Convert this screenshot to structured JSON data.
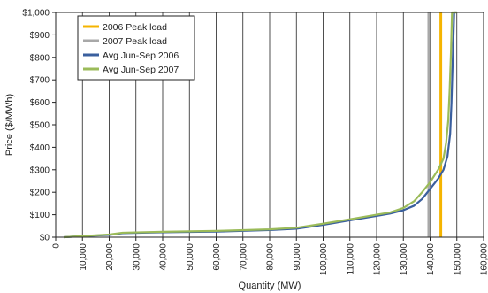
{
  "chart_data": {
    "type": "line",
    "title": "",
    "xlabel": "Quantity (MW)",
    "ylabel": "Price ($/MWh)",
    "xlim": [
      0,
      160000
    ],
    "ylim": [
      0,
      1000
    ],
    "x_ticks": [
      "0",
      "10,000",
      "20,000",
      "30,000",
      "40,000",
      "50,000",
      "60,000",
      "70,000",
      "80,000",
      "90,000",
      "100,000",
      "110,000",
      "120,000",
      "130,000",
      "140,000",
      "150,000",
      "160,000"
    ],
    "x_tick_values": [
      0,
      10000,
      20000,
      30000,
      40000,
      50000,
      60000,
      70000,
      80000,
      90000,
      100000,
      110000,
      120000,
      130000,
      140000,
      150000,
      160000
    ],
    "y_ticks": [
      "$0",
      "$100",
      "$200",
      "$300",
      "$400",
      "$500",
      "$600",
      "$700",
      "$800",
      "$900",
      "$1,000"
    ],
    "y_tick_values": [
      0,
      100,
      200,
      300,
      400,
      500,
      600,
      700,
      800,
      900,
      1000
    ],
    "grid": "vertical",
    "legend_position": "top-left",
    "series": [
      {
        "name": "2006 Peak load",
        "color": "#f5b400",
        "kind": "vline",
        "x": 144000
      },
      {
        "name": "2007 Peak load",
        "color": "#a8a8a8",
        "kind": "vline",
        "x": 139500
      },
      {
        "name": "Avg Jun-Sep 2006",
        "color": "#3a5f9e",
        "kind": "curve",
        "points": [
          [
            3000,
            0
          ],
          [
            10000,
            5
          ],
          [
            20000,
            10
          ],
          [
            25000,
            18
          ],
          [
            40000,
            22
          ],
          [
            60000,
            25
          ],
          [
            80000,
            32
          ],
          [
            90000,
            38
          ],
          [
            100000,
            55
          ],
          [
            110000,
            75
          ],
          [
            120000,
            95
          ],
          [
            125000,
            105
          ],
          [
            130000,
            120
          ],
          [
            134000,
            140
          ],
          [
            137000,
            170
          ],
          [
            140000,
            215
          ],
          [
            143000,
            260
          ],
          [
            145000,
            300
          ],
          [
            146500,
            360
          ],
          [
            147500,
            460
          ],
          [
            148000,
            600
          ],
          [
            148500,
            800
          ],
          [
            149000,
            1000
          ],
          [
            150000,
            1000
          ]
        ]
      },
      {
        "name": "Avg Jun-Sep 2007",
        "color": "#9bbb59",
        "kind": "curve",
        "points": [
          [
            3000,
            0
          ],
          [
            10000,
            5
          ],
          [
            20000,
            12
          ],
          [
            25000,
            20
          ],
          [
            40000,
            24
          ],
          [
            60000,
            28
          ],
          [
            80000,
            35
          ],
          [
            90000,
            42
          ],
          [
            100000,
            60
          ],
          [
            110000,
            80
          ],
          [
            120000,
            100
          ],
          [
            125000,
            110
          ],
          [
            130000,
            130
          ],
          [
            134000,
            160
          ],
          [
            137000,
            200
          ],
          [
            140000,
            245
          ],
          [
            143000,
            300
          ],
          [
            145000,
            350
          ],
          [
            146000,
            420
          ],
          [
            146800,
            520
          ],
          [
            147300,
            650
          ],
          [
            147800,
            820
          ],
          [
            148200,
            1000
          ],
          [
            150000,
            1000
          ]
        ]
      }
    ]
  }
}
